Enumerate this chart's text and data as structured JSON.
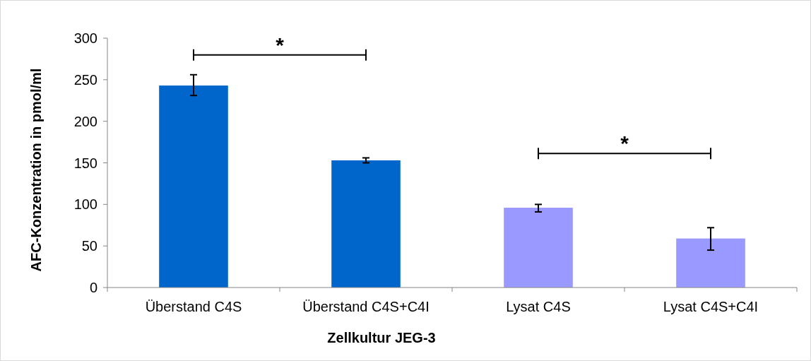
{
  "chart_data": {
    "type": "bar",
    "xlabel": "Zellkultur JEG-3",
    "ylabel": "AFC-Konzentration in pmol/ml",
    "categories": [
      "Überstand C4S",
      "Überstand C4S+C4I",
      "Lysat C4S",
      "Lysat C4S+C4I"
    ],
    "values": [
      243,
      153,
      96,
      59
    ],
    "colors": [
      "#0066cc",
      "#0066cc",
      "#9999ff",
      "#9999ff"
    ],
    "errors": [
      [
        231,
        256
      ],
      [
        150,
        156
      ],
      [
        91,
        100
      ],
      [
        45,
        72
      ]
    ],
    "ylim": [
      0,
      300
    ],
    "yticks": [
      0,
      50,
      100,
      150,
      200,
      250,
      300
    ],
    "annotations": [
      "*",
      "*"
    ]
  }
}
